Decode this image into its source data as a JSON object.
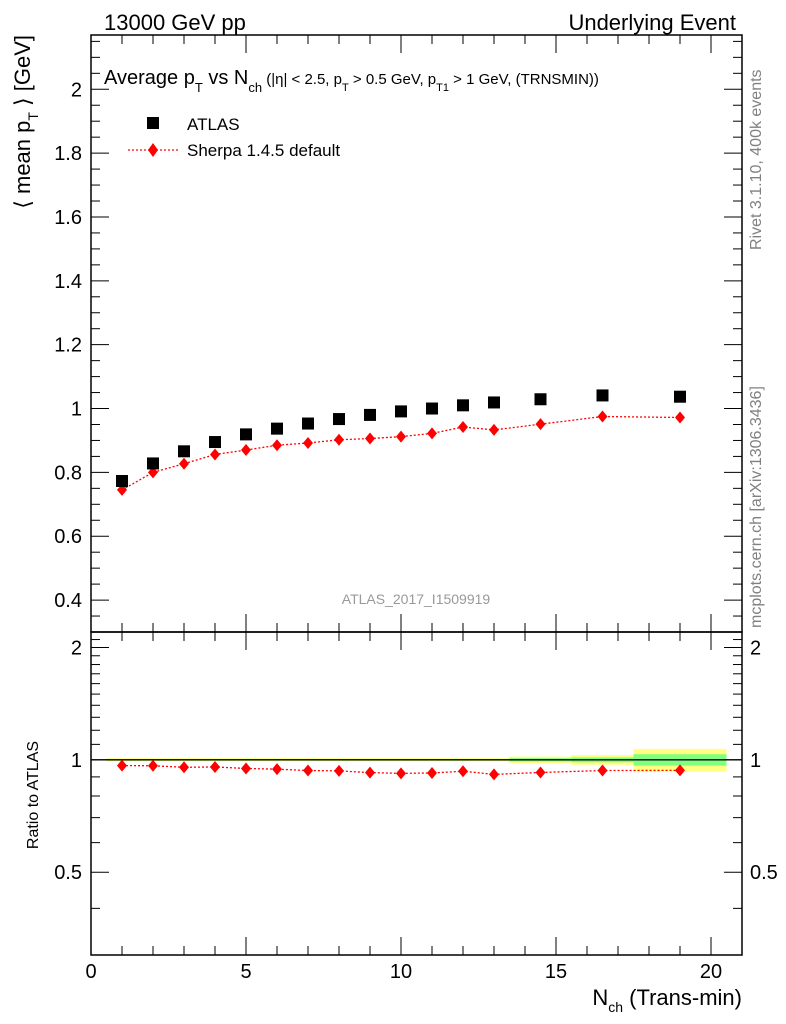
{
  "header": {
    "left": "13000 GeV pp",
    "right": "Underlying Event"
  },
  "side": {
    "rivet": "Rivet 3.1.10,  400k events",
    "mcplots": "mcplots.cern.ch [arXiv:1306.3436]"
  },
  "title": {
    "p1": "Average p",
    "p1sub": "T",
    "p2": " vs N",
    "p2sub": "ch",
    "p3": " (|η| < 2.5, p",
    "p3sub": "T",
    "p4": " > 0.5 GeV, p",
    "p4sub": "T1",
    "p5": " > 1 GeV, (TRNSMIN))"
  },
  "ylabel": {
    "a": "⟨ mean p",
    "sub": "T",
    "b": " ⟩ [GeV]"
  },
  "xlabel": {
    "a": "N",
    "sub": "ch",
    "b": " (Trans-min)"
  },
  "ratio_ylabel": "Ratio to ATLAS",
  "watermark": "ATLAS_2017_I1509919",
  "legend": {
    "atlas": "ATLAS",
    "sherpa": "Sherpa 1.4.5 default"
  },
  "colors": {
    "data": "#000000",
    "mc": "#ff0000",
    "band_outer": "#ffff80",
    "band_inner": "#80ff80",
    "side_text": "#808080",
    "watermark": "#999999"
  },
  "chart_data": {
    "type": "scatter",
    "x": [
      1,
      2,
      3,
      4,
      5,
      6,
      7,
      8,
      9,
      10,
      11,
      12,
      13,
      14.5,
      16.5,
      19
    ],
    "xlim": [
      0,
      21
    ],
    "main_ylim": [
      0.3,
      2.17
    ],
    "ratio_ylim": [
      0.3,
      2.2
    ],
    "x_ticks": [
      "0",
      "5",
      "10",
      "15",
      "20"
    ],
    "main_y_ticks": [
      "0.4",
      "0.6",
      "0.8",
      "1",
      "1.2",
      "1.4",
      "1.6",
      "1.8",
      "2"
    ],
    "ratio_y_ticks": [
      "0.5",
      "1",
      "2"
    ],
    "series": [
      {
        "name": "ATLAS",
        "marker": "square",
        "values": [
          0.773,
          0.828,
          0.866,
          0.895,
          0.919,
          0.937,
          0.953,
          0.967,
          0.98,
          0.991,
          1.0,
          1.01,
          1.019,
          1.029,
          1.041,
          1.037
        ]
      },
      {
        "name": "Sherpa 1.4.5 default",
        "marker": "diamond",
        "line": "dotted",
        "values": [
          0.745,
          0.8,
          0.827,
          0.856,
          0.87,
          0.885,
          0.892,
          0.902,
          0.906,
          0.912,
          0.922,
          0.942,
          0.933,
          0.951,
          0.975,
          0.972
        ]
      }
    ],
    "ratio": {
      "name": "Sherpa 1.4.5 default",
      "values": [
        0.965,
        0.964,
        0.955,
        0.957,
        0.948,
        0.944,
        0.936,
        0.934,
        0.924,
        0.92,
        0.922,
        0.932,
        0.914,
        0.925,
        0.936,
        0.937
      ]
    },
    "bands": [
      {
        "x0": 0.5,
        "x1": 13.5,
        "outer": [
          0.99,
          1.01
        ],
        "inner": [
          0.995,
          1.005
        ]
      },
      {
        "x0": 13.5,
        "x1": 15.5,
        "outer": [
          0.98,
          1.02
        ],
        "inner": [
          0.99,
          1.01
        ]
      },
      {
        "x0": 15.5,
        "x1": 17.5,
        "outer": [
          0.97,
          1.03
        ],
        "inner": [
          0.985,
          1.015
        ]
      },
      {
        "x0": 17.5,
        "x1": 20.5,
        "outer": [
          0.93,
          1.07
        ],
        "inner": [
          0.965,
          1.035
        ]
      }
    ]
  }
}
